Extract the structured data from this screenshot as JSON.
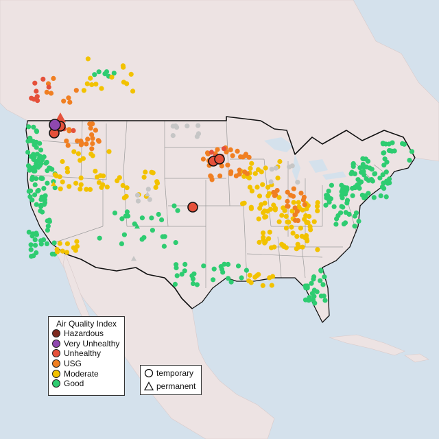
{
  "colors": {
    "ocean": "#d4e1ec",
    "land": "#ede3e3",
    "state_lines": "#9a9a9a",
    "border": "#111111",
    "hazardous": "#7e2a1e",
    "very_unhealthy": "#8f48b0",
    "unhealthy": "#e5513b",
    "usg": "#f07f22",
    "moderate": "#f2c200",
    "good": "#2ecc71",
    "no_data": "#c6c6c6"
  },
  "legend": {
    "title": "Air Quality Index",
    "categories": [
      {
        "label": "Hazardous",
        "key": "hazardous"
      },
      {
        "label": "Very Unhealthy",
        "key": "very_unhealthy"
      },
      {
        "label": "Unhealthy",
        "key": "unhealthy"
      },
      {
        "label": "USG",
        "key": "usg"
      },
      {
        "label": "Moderate",
        "key": "moderate"
      },
      {
        "label": "Good",
        "key": "good"
      }
    ]
  },
  "monitor_types": {
    "temporary": "temporary",
    "permanent": "permanent"
  }
}
